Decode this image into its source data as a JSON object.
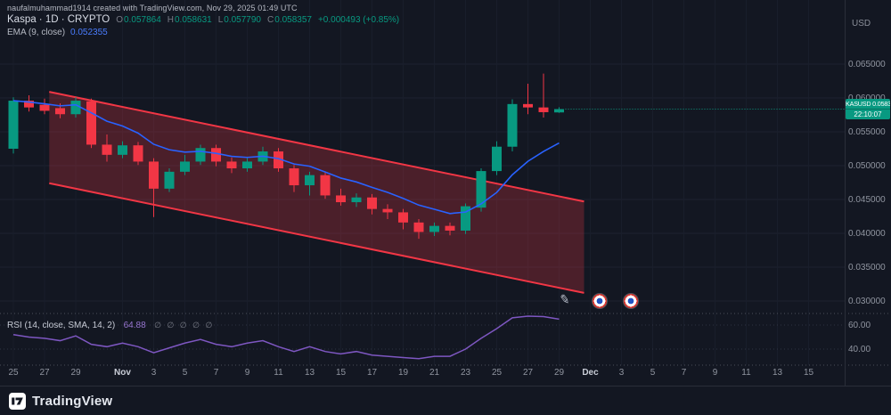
{
  "watermark": "naufalmuhammad1914 created with TradingView.com, Nov 29, 2025 01:49 UTC",
  "legend": {
    "symbol_line": "Kaspa · 1D · CRYPTO",
    "ohlc": {
      "o_label": "O",
      "o": "0.057864",
      "h_label": "H",
      "h": "0.058631",
      "l_label": "L",
      "l": "0.057790",
      "c_label": "C",
      "c": "0.058357",
      "change": "+0.000493 (+0.85%)"
    },
    "ema_label": "EMA (9, close)",
    "ema_value": "0.052355"
  },
  "rsi_legend": {
    "label": "RSI (14, close, SMA, 14, 2)",
    "value": "64.88",
    "extras": "∅ ∅ ∅ ∅ ∅"
  },
  "price_axis": {
    "currency": "USD",
    "tick_format": "0.000000"
  },
  "price_label": {
    "symbol": "KASUSD",
    "price": "0.058357",
    "countdown": "22:10:07"
  },
  "footer": {
    "brand": "TradingView"
  },
  "stickers": [
    "pen-icon",
    "roundel-icon",
    "roundel-icon"
  ],
  "colors": {
    "bg": "#131722",
    "up": "#089981",
    "down": "#f23645",
    "ema": "#2962ff",
    "rsi": "#7e57c2",
    "channel_fill": "rgba(242,54,69,0.25)",
    "grid": "#1c2230",
    "axis_text": "#9095a0"
  },
  "chart_data": {
    "type": "candlestick",
    "symbol": "KASUSD",
    "interval": "1D",
    "title": "Kaspa · 1D · CRYPTO",
    "price_ticks": [
      0.065,
      0.06,
      0.055,
      0.05,
      0.045,
      0.04,
      0.035,
      0.03
    ],
    "price_range_visible": [
      0.0275,
      0.0675
    ],
    "candles": [
      {
        "d": "Oct 25",
        "o": 0.0525,
        "h": 0.0601,
        "l": 0.0518,
        "c": 0.0596
      },
      {
        "d": "Oct 26",
        "o": 0.0596,
        "h": 0.0604,
        "l": 0.058,
        "c": 0.0586
      },
      {
        "d": "Oct 27",
        "o": 0.059,
        "h": 0.0599,
        "l": 0.0576,
        "c": 0.0581
      },
      {
        "d": "Oct 28",
        "o": 0.0585,
        "h": 0.0592,
        "l": 0.057,
        "c": 0.0576
      },
      {
        "d": "Oct 29",
        "o": 0.0576,
        "h": 0.0601,
        "l": 0.0571,
        "c": 0.0596
      },
      {
        "d": "Oct 30",
        "o": 0.0595,
        "h": 0.0599,
        "l": 0.0526,
        "c": 0.0531
      },
      {
        "d": "Oct 31",
        "o": 0.0531,
        "h": 0.0546,
        "l": 0.0506,
        "c": 0.0516
      },
      {
        "d": "Nov 1",
        "o": 0.0516,
        "h": 0.0536,
        "l": 0.0511,
        "c": 0.053
      },
      {
        "d": "Nov 2",
        "o": 0.053,
        "h": 0.0535,
        "l": 0.0501,
        "c": 0.0506
      },
      {
        "d": "Nov 3",
        "o": 0.0506,
        "h": 0.0511,
        "l": 0.0424,
        "c": 0.0466
      },
      {
        "d": "Nov 4",
        "o": 0.0466,
        "h": 0.0496,
        "l": 0.0461,
        "c": 0.0491
      },
      {
        "d": "Nov 5",
        "o": 0.0491,
        "h": 0.0516,
        "l": 0.0486,
        "c": 0.0506
      },
      {
        "d": "Nov 6",
        "o": 0.0506,
        "h": 0.0531,
        "l": 0.0501,
        "c": 0.0526
      },
      {
        "d": "Nov 7",
        "o": 0.0526,
        "h": 0.0531,
        "l": 0.0499,
        "c": 0.0506
      },
      {
        "d": "Nov 8",
        "o": 0.0506,
        "h": 0.0512,
        "l": 0.0489,
        "c": 0.0496
      },
      {
        "d": "Nov 9",
        "o": 0.0496,
        "h": 0.0511,
        "l": 0.0491,
        "c": 0.0506
      },
      {
        "d": "Nov 10",
        "o": 0.0506,
        "h": 0.0528,
        "l": 0.0501,
        "c": 0.0521
      },
      {
        "d": "Nov 11",
        "o": 0.0521,
        "h": 0.0526,
        "l": 0.0491,
        "c": 0.0496
      },
      {
        "d": "Nov 12",
        "o": 0.0496,
        "h": 0.0501,
        "l": 0.0461,
        "c": 0.0471
      },
      {
        "d": "Nov 13",
        "o": 0.0471,
        "h": 0.0491,
        "l": 0.0456,
        "c": 0.0486
      },
      {
        "d": "Nov 14",
        "o": 0.0486,
        "h": 0.0491,
        "l": 0.0451,
        "c": 0.0456
      },
      {
        "d": "Nov 15",
        "o": 0.0456,
        "h": 0.0466,
        "l": 0.0441,
        "c": 0.0446
      },
      {
        "d": "Nov 16",
        "o": 0.0446,
        "h": 0.0459,
        "l": 0.0439,
        "c": 0.0453
      },
      {
        "d": "Nov 17",
        "o": 0.0453,
        "h": 0.0458,
        "l": 0.0428,
        "c": 0.0436
      },
      {
        "d": "Nov 18",
        "o": 0.0436,
        "h": 0.0443,
        "l": 0.0421,
        "c": 0.0431
      },
      {
        "d": "Nov 19",
        "o": 0.0431,
        "h": 0.0436,
        "l": 0.0406,
        "c": 0.0416
      },
      {
        "d": "Nov 20",
        "o": 0.0416,
        "h": 0.0421,
        "l": 0.0392,
        "c": 0.0402
      },
      {
        "d": "Nov 21",
        "o": 0.0402,
        "h": 0.0416,
        "l": 0.0396,
        "c": 0.0411
      },
      {
        "d": "Nov 22",
        "o": 0.0411,
        "h": 0.0416,
        "l": 0.0397,
        "c": 0.0404
      },
      {
        "d": "Nov 23",
        "o": 0.0404,
        "h": 0.0444,
        "l": 0.0399,
        "c": 0.044
      },
      {
        "d": "Nov 24",
        "o": 0.0438,
        "h": 0.0496,
        "l": 0.0432,
        "c": 0.0492
      },
      {
        "d": "Nov 25",
        "o": 0.0492,
        "h": 0.0536,
        "l": 0.0486,
        "c": 0.0528
      },
      {
        "d": "Nov 26",
        "o": 0.0528,
        "h": 0.0598,
        "l": 0.0521,
        "c": 0.0591
      },
      {
        "d": "Nov 27",
        "o": 0.0591,
        "h": 0.0621,
        "l": 0.0576,
        "c": 0.0586
      },
      {
        "d": "Nov 28",
        "o": 0.0586,
        "h": 0.0636,
        "l": 0.0571,
        "c": 0.0579
      },
      {
        "d": "Nov 29",
        "o": 0.057864,
        "h": 0.058631,
        "l": 0.05779,
        "c": 0.058357
      }
    ],
    "ema_period": 9,
    "rsi": [
      52,
      50,
      49,
      47,
      51,
      44,
      42,
      45,
      42,
      37,
      41,
      45,
      48,
      44,
      42,
      45,
      47,
      42,
      38,
      42,
      38,
      36,
      38,
      35,
      34,
      33,
      32,
      34,
      34,
      40,
      49,
      57,
      66,
      70,
      67,
      64.88
    ],
    "rsi_ticks": [
      60,
      40
    ],
    "channel": {
      "start_idx": 2.3,
      "start_price": 0.0609,
      "end_idx": 36.6,
      "end_price": 0.0447,
      "offset": -0.0135
    },
    "x_labels": [
      {
        "t": "25",
        "d": 0
      },
      {
        "t": "27",
        "d": 2
      },
      {
        "t": "29",
        "d": 4
      },
      {
        "t": "Nov",
        "d": 7,
        "major": true
      },
      {
        "t": "3",
        "d": 9
      },
      {
        "t": "5",
        "d": 11
      },
      {
        "t": "7",
        "d": 13
      },
      {
        "t": "9",
        "d": 15
      },
      {
        "t": "11",
        "d": 17
      },
      {
        "t": "13",
        "d": 19
      },
      {
        "t": "15",
        "d": 21
      },
      {
        "t": "17",
        "d": 23
      },
      {
        "t": "19",
        "d": 25
      },
      {
        "t": "21",
        "d": 27
      },
      {
        "t": "23",
        "d": 29
      },
      {
        "t": "25",
        "d": 31
      },
      {
        "t": "27",
        "d": 33
      },
      {
        "t": "29",
        "d": 35
      },
      {
        "t": "Dec",
        "d": 37,
        "major": true
      },
      {
        "t": "3",
        "d": 39
      },
      {
        "t": "5",
        "d": 41
      },
      {
        "t": "7",
        "d": 43
      },
      {
        "t": "9",
        "d": 45
      },
      {
        "t": "11",
        "d": 47
      },
      {
        "t": "13",
        "d": 49
      },
      {
        "t": "15",
        "d": 51
      }
    ]
  }
}
